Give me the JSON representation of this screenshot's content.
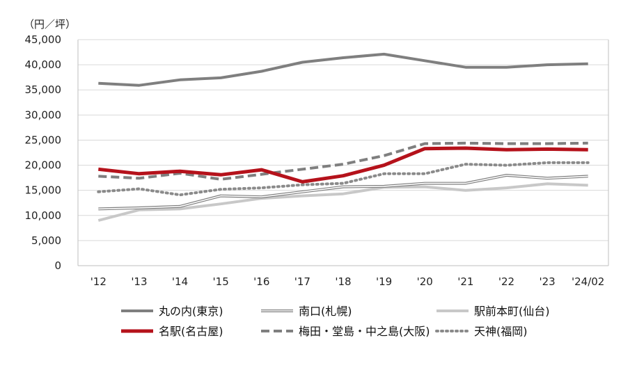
{
  "chart_data": {
    "type": "line",
    "unit_label": "（円／坪）",
    "categories": [
      "'12",
      "'13",
      "'14",
      "'15",
      "'16",
      "'17",
      "'18",
      "'19",
      "'20",
      "'21",
      "'22",
      "'23",
      "'24/02"
    ],
    "ylim": [
      0,
      45000
    ],
    "yticks": [
      0,
      5000,
      10000,
      15000,
      20000,
      25000,
      30000,
      35000,
      40000,
      45000
    ],
    "ytick_labels": [
      "0",
      "5,000",
      "10,000",
      "15,000",
      "20,000",
      "25,000",
      "30,000",
      "35,000",
      "40,000",
      "45,000"
    ],
    "grid": true,
    "legend_position": "bottom",
    "series": [
      {
        "name": "丸の内(東京)",
        "color": "#7f7f7f",
        "style": "solid",
        "values": [
          36300,
          35900,
          37000,
          37400,
          38700,
          40500,
          41400,
          42100,
          40800,
          39500,
          39500,
          40000,
          40200
        ]
      },
      {
        "name": "南口(札幌)",
        "color": "#7f7f7f",
        "style": "double",
        "values": [
          11300,
          11500,
          11800,
          13900,
          13700,
          14700,
          15700,
          15800,
          16400,
          16400,
          18000,
          17400,
          17800
        ]
      },
      {
        "name": "駅前本町(仙台)",
        "color": "#c8c8c8",
        "style": "solid",
        "values": [
          9000,
          11100,
          11300,
          12300,
          13400,
          13900,
          14300,
          15600,
          15700,
          15000,
          15500,
          16300,
          16000
        ]
      },
      {
        "name": "名駅(名古屋)",
        "color": "#b5121b",
        "style": "solid",
        "values": [
          19200,
          18300,
          18800,
          18100,
          19100,
          16700,
          17900,
          20000,
          23300,
          23400,
          23100,
          23200,
          23100
        ]
      },
      {
        "name": "梅田・堂島・中之島(大阪)",
        "color": "#7f7f7f",
        "style": "dashed",
        "values": [
          17800,
          17400,
          18400,
          17200,
          18200,
          19200,
          20200,
          21900,
          24300,
          24400,
          24300,
          24300,
          24400
        ]
      },
      {
        "name": "天神(福岡)",
        "color": "#8a8a8a",
        "style": "dotted",
        "values": [
          14700,
          15300,
          14100,
          15200,
          15500,
          16100,
          16400,
          18300,
          18300,
          20200,
          20000,
          20500,
          20500
        ]
      }
    ]
  }
}
